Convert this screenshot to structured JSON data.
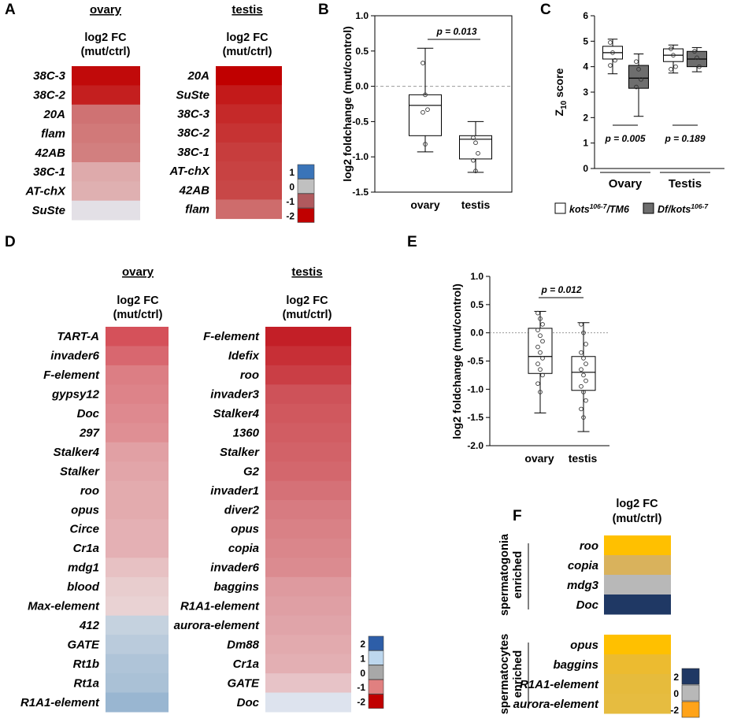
{
  "colors": {
    "red_dark": "#c00000",
    "red_mid": "#cc6666",
    "red_light": "#e8b5b8",
    "grey": "#c0c0c0",
    "blue_light": "#c6d9ee",
    "blue_dark": "#3a74b8",
    "navy": "#1f3864",
    "orange": "#ffa319",
    "box_fill_grey": "#6e6e6e"
  },
  "chart_data": [
    {
      "panel": "A",
      "type": "heatmap",
      "title": "ovary",
      "subtitle": "log2 FC",
      "subtitle2": "(mut/ctrl)",
      "rows": [
        "38C-3",
        "38C-2",
        "20A",
        "flam",
        "42AB",
        "38C-1",
        "AT-chX",
        "SuSte"
      ],
      "values": [
        -1.9,
        -1.7,
        -0.9,
        -0.85,
        -0.8,
        -0.45,
        -0.4,
        0.25
      ]
    },
    {
      "panel": "A",
      "type": "heatmap",
      "title": "testis",
      "subtitle": "log2 FC",
      "subtitle2": "(mut/ctrl)",
      "rows": [
        "20A",
        "SuSte",
        "38C-3",
        "38C-2",
        "38C-1",
        "AT-chX",
        "42AB",
        "flam"
      ],
      "values": [
        -2.0,
        -1.75,
        -1.6,
        -1.5,
        -1.4,
        -1.35,
        -1.3,
        -0.95
      ],
      "legend": {
        "labels": [
          "1",
          "0",
          "-1",
          "-2"
        ],
        "values": [
          1,
          0,
          -1,
          -2
        ]
      }
    },
    {
      "panel": "B",
      "type": "box",
      "ylabel": "log2 foldchange (mut/control)",
      "ylim": [
        -1.5,
        1.0
      ],
      "yticks": [
        "1.0",
        "0.5",
        "0.0",
        "-0.5",
        "-1.0",
        "-1.5"
      ],
      "ytick_values": [
        1.0,
        0.5,
        0.0,
        -0.5,
        -1.0,
        -1.5
      ],
      "categories": [
        "ovary",
        "testis"
      ],
      "boxes": [
        {
          "name": "ovary",
          "min": -0.93,
          "q1": -0.7,
          "median": -0.27,
          "q3": -0.12,
          "max": 0.54,
          "points": [
            0.33,
            -0.12,
            -0.33,
            -0.37,
            -0.82
          ]
        },
        {
          "name": "testis",
          "min": -1.22,
          "q1": -1.03,
          "median": -0.75,
          "q3": -0.7,
          "max": -0.5,
          "points": [
            -0.73,
            -0.8,
            -0.95,
            -1.05,
            -1.2
          ]
        }
      ],
      "pvalue": "p = 0.013"
    },
    {
      "panel": "C",
      "type": "box",
      "ylabel": "Z10 score",
      "ylabel_main": "Z",
      "ylabel_sub": "10",
      "ylabel_rest": " score",
      "ylim": [
        0,
        6
      ],
      "yticks": [
        "6",
        "5",
        "4",
        "3",
        "2",
        "1",
        "0"
      ],
      "ytick_values": [
        6,
        5,
        4,
        3,
        2,
        1,
        0
      ],
      "groups": [
        "Ovary",
        "Testis"
      ],
      "boxes": [
        {
          "name": "Ovary kots106-7/TM6",
          "fill": "white",
          "min": 3.72,
          "q1": 4.3,
          "median": 4.55,
          "q3": 4.8,
          "max": 5.08,
          "points": [
            4.95,
            4.55,
            4.25,
            4.05
          ]
        },
        {
          "name": "Ovary Df/kots106-7",
          "fill": "grey",
          "min": 2.05,
          "q1": 3.15,
          "median": 3.55,
          "q3": 4.05,
          "max": 4.5,
          "points": [
            4.2,
            3.9,
            3.5,
            3.2
          ]
        },
        {
          "name": "Testis kots106-7/TM6",
          "fill": "white",
          "min": 3.75,
          "q1": 4.2,
          "median": 4.45,
          "q3": 4.7,
          "max": 4.85,
          "points": [
            4.7,
            4.45,
            4.0,
            3.9
          ]
        },
        {
          "name": "Testis Df/kots106-7",
          "fill": "grey",
          "min": 3.8,
          "q1": 4.0,
          "median": 4.3,
          "q3": 4.6,
          "max": 4.75,
          "points": [
            4.6,
            4.35,
            4.0
          ]
        }
      ],
      "pvalues": [
        "p = 0.005",
        "p = 0.189"
      ],
      "legend": [
        {
          "label": "kots",
          "sup": "106-7",
          "rest": "/TM6",
          "fill": "white"
        },
        {
          "label": "Df/kots",
          "sup": "106-7",
          "rest": "",
          "fill": "grey"
        }
      ]
    },
    {
      "panel": "D",
      "type": "heatmap",
      "title": "ovary",
      "subtitle": "log2 FC",
      "subtitle2": "(mut/ctrl)",
      "rows": [
        "TART-A",
        "invader6",
        "F-element",
        "gypsy12",
        "Doc",
        "297",
        "Stalker4",
        "Stalker",
        "roo",
        "opus",
        "Circe",
        "Cr1a",
        "mdg1",
        "blood",
        "Max-element",
        "412",
        "GATE",
        "Rt1b",
        "Rt1a",
        "R1A1-element"
      ],
      "values": [
        -1.3,
        -1.1,
        -0.9,
        -0.85,
        -0.8,
        -0.75,
        -0.6,
        -0.55,
        -0.5,
        -0.5,
        -0.45,
        -0.45,
        -0.3,
        -0.2,
        -0.15,
        0.3,
        0.4,
        0.5,
        0.55,
        0.7
      ]
    },
    {
      "panel": "D",
      "type": "heatmap",
      "title": "testis",
      "subtitle": "log2 FC",
      "subtitle2": "(mut/ctrl)",
      "rows": [
        "F-element",
        "Idefix",
        "roo",
        "invader3",
        "Stalker4",
        "1360",
        "Stalker",
        "G2",
        "invader1",
        "diver2",
        "opus",
        "copia",
        "invader6",
        "baggins",
        "R1A1-element",
        "aurora-element",
        "Dm88",
        "Cr1a",
        "GATE",
        "Doc"
      ],
      "values": [
        -1.9,
        -1.75,
        -1.6,
        -1.4,
        -1.35,
        -1.3,
        -1.25,
        -1.2,
        -1.1,
        -1.0,
        -0.95,
        -0.9,
        -0.85,
        -0.7,
        -0.65,
        -0.6,
        -0.55,
        -0.5,
        -0.3,
        0.2
      ],
      "legend": {
        "labels": [
          "2",
          "1",
          "0",
          "-1",
          "-2"
        ],
        "values": [
          2,
          1,
          0,
          -1,
          -2
        ]
      }
    },
    {
      "panel": "E",
      "type": "box",
      "ylabel": "log2 foldchange (mut/control)",
      "ylim": [
        -2.0,
        1.0
      ],
      "yticks": [
        "1.0",
        "0.5",
        "0.0",
        "-0.5",
        "-1.0",
        "-1.5",
        "-2.0"
      ],
      "ytick_values": [
        1.0,
        0.5,
        0.0,
        -0.5,
        -1.0,
        -1.5,
        -2.0
      ],
      "categories": [
        "ovary",
        "testis"
      ],
      "boxes": [
        {
          "name": "ovary",
          "min": -1.42,
          "q1": -0.72,
          "median": -0.42,
          "q3": 0.08,
          "max": 0.38,
          "points": [
            0.35,
            0.25,
            0.15,
            0.05,
            -0.05,
            -0.15,
            -0.25,
            -0.35,
            -0.45,
            -0.55,
            -0.65,
            -0.75,
            -0.9,
            -1.05
          ]
        },
        {
          "name": "testis",
          "min": -1.75,
          "q1": -1.02,
          "median": -0.7,
          "q3": -0.42,
          "max": 0.18,
          "points": [
            0.15,
            0.0,
            -0.2,
            -0.35,
            -0.45,
            -0.55,
            -0.65,
            -0.75,
            -0.85,
            -0.95,
            -1.05,
            -1.2,
            -1.35,
            -1.5
          ]
        }
      ],
      "pvalue": "p = 0.012"
    },
    {
      "panel": "F",
      "type": "heatmap",
      "subtitle": "log2 FC",
      "subtitle2": "(mut/ctrl)",
      "groups": [
        {
          "label1": "spermatogonia",
          "label2": "enriched",
          "rows": [
            "roo",
            "copia",
            "mdg3",
            "Doc"
          ],
          "colors": [
            "#ffc000",
            "#d9b25c",
            "#b8b8b8",
            "#1f3864"
          ]
        },
        {
          "label1": "spermatocytes",
          "label2": "enriched",
          "rows": [
            "opus",
            "baggins",
            "R1A1-element",
            "aurora-element"
          ],
          "colors": [
            "#ffc000",
            "#ecbb30",
            "#e6bb3c",
            "#e6bc40"
          ]
        }
      ],
      "legend": {
        "labels": [
          "2",
          "0",
          "-2"
        ],
        "colors": [
          "#1f3864",
          "#b8b8b8",
          "#ffa319"
        ]
      }
    }
  ]
}
